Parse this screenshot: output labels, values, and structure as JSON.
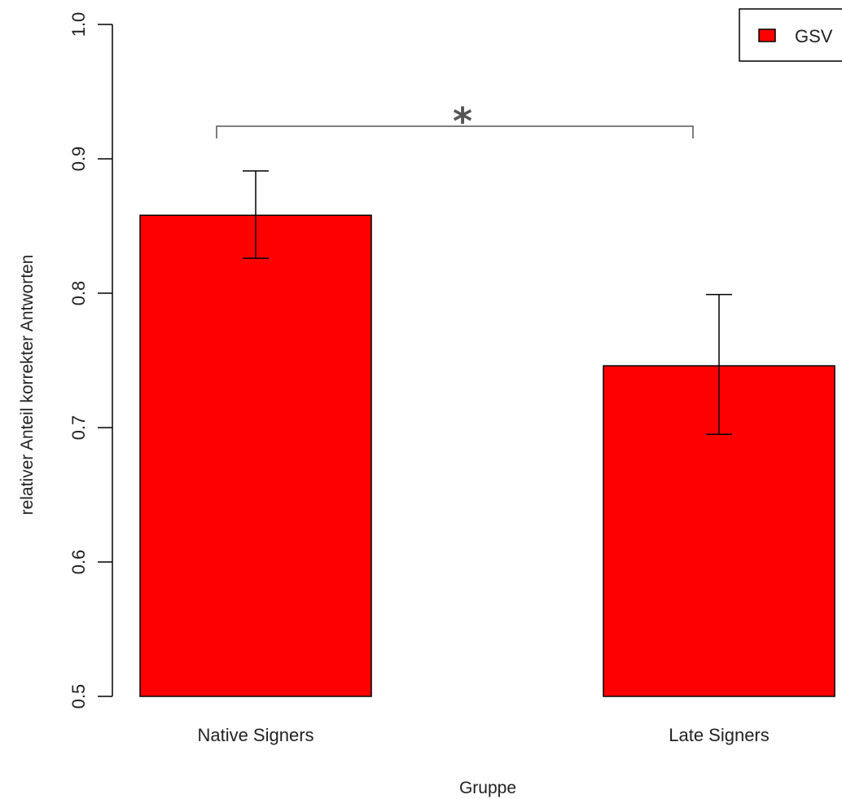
{
  "chart_data": {
    "type": "bar",
    "categories": [
      "Native Signers",
      "Late Signers"
    ],
    "series": [
      {
        "name": "GSV",
        "values": [
          0.858,
          0.746
        ],
        "error_low": [
          0.826,
          0.695
        ],
        "error_high": [
          0.891,
          0.799
        ],
        "color": "#ff0000"
      }
    ],
    "xlabel": "Gruppe",
    "ylabel": "relativer Anteil korrekter Antworten",
    "ylim": [
      0.5,
      1.0
    ],
    "yticks": [
      "0.5",
      "0.6",
      "0.7",
      "0.8",
      "0.9",
      "1.0"
    ],
    "ytick_values": [
      0.5,
      0.6,
      0.7,
      0.8,
      0.9,
      1.0
    ],
    "grid": false,
    "legend": {
      "position": "top-right",
      "entries": [
        "GSV"
      ]
    },
    "annotations": [
      {
        "text": "*",
        "type": "significance-bracket",
        "between": [
          "Native Signers",
          "Late Signers"
        ]
      }
    ]
  }
}
